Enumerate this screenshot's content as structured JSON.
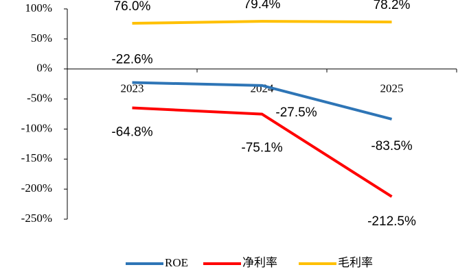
{
  "chart_data": {
    "type": "line",
    "categories": [
      "2023",
      "2024",
      "2025"
    ],
    "series": [
      {
        "name": "ROE",
        "color": "#2e75b6",
        "values": [
          -22.6,
          -27.5,
          -83.5
        ],
        "value_labels": [
          "-22.6%",
          "-27.5%",
          "-83.5%"
        ]
      },
      {
        "name": "净利率",
        "color": "#ff0000",
        "values": [
          -64.8,
          -75.1,
          -212.5
        ],
        "value_labels": [
          "-64.8%",
          "-75.1%",
          "-212.5%"
        ]
      },
      {
        "name": "毛利率",
        "color": "#ffc000",
        "values": [
          76.0,
          79.4,
          78.2
        ],
        "value_labels": [
          "76.0%",
          "79.4%",
          "78.2%"
        ]
      }
    ],
    "ylim": [
      -250,
      100
    ],
    "yticks": [
      {
        "value": -250,
        "label": "-250%"
      },
      {
        "value": -200,
        "label": "-200%"
      },
      {
        "value": -150,
        "label": "-150%"
      },
      {
        "value": -100,
        "label": "-100%"
      },
      {
        "value": -50,
        "label": "-50%"
      },
      {
        "value": 0,
        "label": "0%"
      },
      {
        "value": 50,
        "label": "50%"
      },
      {
        "value": 100,
        "label": "100%"
      }
    ],
    "legend": "bottom"
  }
}
